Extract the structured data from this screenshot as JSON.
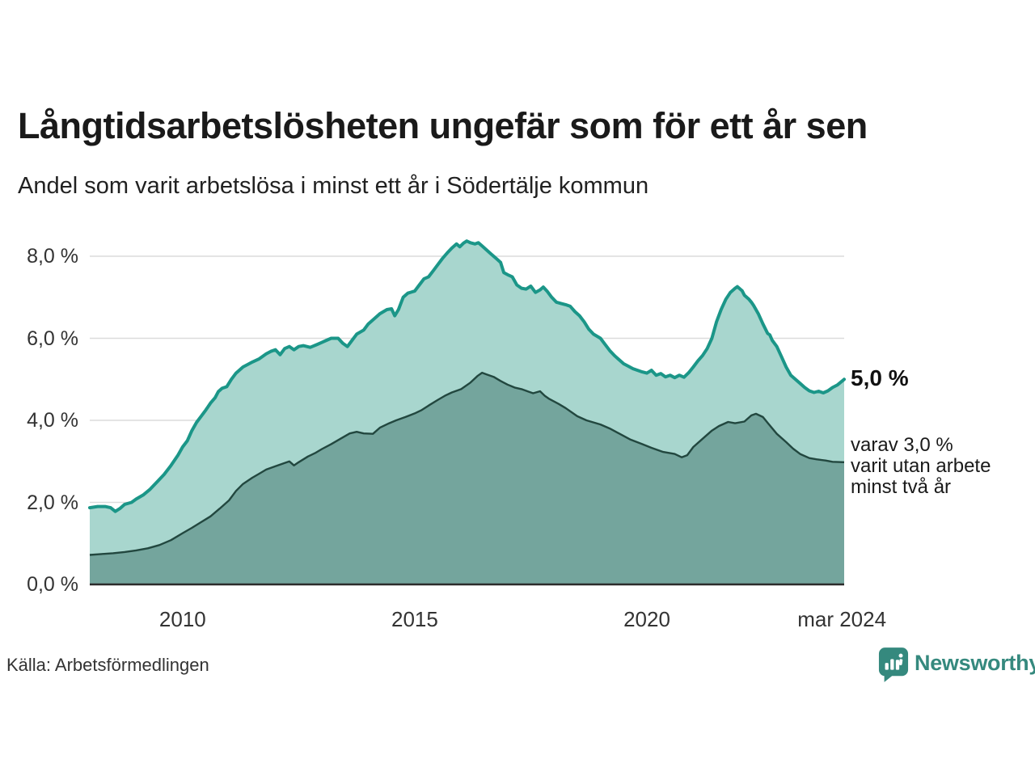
{
  "title": "Långtidsarbetslösheten ungefär som för ett år sen",
  "subtitle": "Andel som varit arbetslösa i minst ett år i Södertälje kommun",
  "source": "Källa: Arbetsförmedlingen",
  "branding": {
    "name": "Newsworthy",
    "color": "#35897e"
  },
  "annotations": {
    "latest_total": "5,0 %",
    "secondary": [
      "varav 3,0 %",
      "varit utan arbete",
      "minst två år"
    ]
  },
  "colors": {
    "total_line": "#1b9688",
    "total_fill": "#a8d6ce",
    "twoyear_line": "#22473f",
    "twoyear_fill": "#74a59d",
    "gridline": "#dcdcdc",
    "axis": "#2b2b2b"
  },
  "chart_data": {
    "type": "area",
    "title": "Långtidsarbetslösheten ungefär som för ett år sen",
    "subtitle": "Andel som varit arbetslösa i minst ett år i Södertälje kommun",
    "xlabel": "",
    "ylabel": "",
    "xlim": [
      2008.0,
      2024.25
    ],
    "ylim": [
      0,
      8.6
    ],
    "grid": true,
    "legend": "none",
    "yticks": [
      {
        "value": 8,
        "label": "8,0 %"
      },
      {
        "value": 6,
        "label": "6,0 %"
      },
      {
        "value": 4,
        "label": "4,0 %"
      },
      {
        "value": 2,
        "label": "2,0 %"
      },
      {
        "value": 0,
        "label": "0,0 %"
      }
    ],
    "xticks": [
      {
        "year": 2010,
        "label": "2010"
      },
      {
        "year": 2015,
        "label": "2015"
      },
      {
        "year": 2020,
        "label": "2020"
      },
      {
        "year": 2024.2,
        "label": "mar 2024"
      }
    ],
    "series": [
      {
        "name": "Arbetslösa minst ett år",
        "unit": "%",
        "latest_label": "5,0 %",
        "points": [
          [
            2008.0,
            1.87
          ],
          [
            2008.17,
            1.9
          ],
          [
            2008.33,
            1.9
          ],
          [
            2008.45,
            1.87
          ],
          [
            2008.55,
            1.78
          ],
          [
            2008.65,
            1.85
          ],
          [
            2008.75,
            1.95
          ],
          [
            2008.9,
            2.0
          ],
          [
            2009.0,
            2.08
          ],
          [
            2009.15,
            2.18
          ],
          [
            2009.3,
            2.32
          ],
          [
            2009.45,
            2.5
          ],
          [
            2009.6,
            2.68
          ],
          [
            2009.75,
            2.9
          ],
          [
            2009.9,
            3.15
          ],
          [
            2010.0,
            3.35
          ],
          [
            2010.1,
            3.5
          ],
          [
            2010.2,
            3.75
          ],
          [
            2010.3,
            3.95
          ],
          [
            2010.4,
            4.1
          ],
          [
            2010.5,
            4.25
          ],
          [
            2010.6,
            4.42
          ],
          [
            2010.7,
            4.55
          ],
          [
            2010.77,
            4.7
          ],
          [
            2010.85,
            4.78
          ],
          [
            2010.95,
            4.82
          ],
          [
            2011.05,
            5.0
          ],
          [
            2011.15,
            5.15
          ],
          [
            2011.3,
            5.3
          ],
          [
            2011.4,
            5.36
          ],
          [
            2011.5,
            5.42
          ],
          [
            2011.65,
            5.5
          ],
          [
            2011.8,
            5.62
          ],
          [
            2011.9,
            5.68
          ],
          [
            2012.0,
            5.72
          ],
          [
            2012.1,
            5.6
          ],
          [
            2012.2,
            5.75
          ],
          [
            2012.3,
            5.8
          ],
          [
            2012.4,
            5.72
          ],
          [
            2012.5,
            5.8
          ],
          [
            2012.6,
            5.82
          ],
          [
            2012.75,
            5.78
          ],
          [
            2012.9,
            5.85
          ],
          [
            2013.0,
            5.9
          ],
          [
            2013.1,
            5.95
          ],
          [
            2013.2,
            6.0
          ],
          [
            2013.35,
            6.0
          ],
          [
            2013.45,
            5.88
          ],
          [
            2013.55,
            5.8
          ],
          [
            2013.65,
            5.95
          ],
          [
            2013.75,
            6.1
          ],
          [
            2013.9,
            6.2
          ],
          [
            2014.0,
            6.35
          ],
          [
            2014.1,
            6.45
          ],
          [
            2014.25,
            6.6
          ],
          [
            2014.4,
            6.7
          ],
          [
            2014.5,
            6.72
          ],
          [
            2014.57,
            6.55
          ],
          [
            2014.65,
            6.7
          ],
          [
            2014.75,
            7.0
          ],
          [
            2014.85,
            7.1
          ],
          [
            2015.0,
            7.15
          ],
          [
            2015.1,
            7.3
          ],
          [
            2015.2,
            7.45
          ],
          [
            2015.3,
            7.5
          ],
          [
            2015.4,
            7.65
          ],
          [
            2015.5,
            7.8
          ],
          [
            2015.6,
            7.95
          ],
          [
            2015.7,
            8.08
          ],
          [
            2015.8,
            8.2
          ],
          [
            2015.9,
            8.3
          ],
          [
            2015.97,
            8.23
          ],
          [
            2016.05,
            8.32
          ],
          [
            2016.12,
            8.37
          ],
          [
            2016.2,
            8.33
          ],
          [
            2016.3,
            8.3
          ],
          [
            2016.37,
            8.33
          ],
          [
            2016.45,
            8.25
          ],
          [
            2016.55,
            8.15
          ],
          [
            2016.65,
            8.05
          ],
          [
            2016.75,
            7.95
          ],
          [
            2016.85,
            7.85
          ],
          [
            2016.92,
            7.6
          ],
          [
            2017.0,
            7.55
          ],
          [
            2017.1,
            7.5
          ],
          [
            2017.2,
            7.3
          ],
          [
            2017.3,
            7.22
          ],
          [
            2017.4,
            7.2
          ],
          [
            2017.5,
            7.27
          ],
          [
            2017.6,
            7.12
          ],
          [
            2017.7,
            7.18
          ],
          [
            2017.77,
            7.25
          ],
          [
            2017.85,
            7.15
          ],
          [
            2017.95,
            7.0
          ],
          [
            2018.05,
            6.88
          ],
          [
            2018.15,
            6.85
          ],
          [
            2018.25,
            6.82
          ],
          [
            2018.35,
            6.78
          ],
          [
            2018.45,
            6.65
          ],
          [
            2018.55,
            6.55
          ],
          [
            2018.65,
            6.4
          ],
          [
            2018.75,
            6.22
          ],
          [
            2018.85,
            6.1
          ],
          [
            2019.0,
            6.0
          ],
          [
            2019.1,
            5.85
          ],
          [
            2019.2,
            5.7
          ],
          [
            2019.3,
            5.58
          ],
          [
            2019.4,
            5.48
          ],
          [
            2019.5,
            5.38
          ],
          [
            2019.6,
            5.32
          ],
          [
            2019.7,
            5.26
          ],
          [
            2019.8,
            5.22
          ],
          [
            2019.9,
            5.18
          ],
          [
            2020.0,
            5.15
          ],
          [
            2020.1,
            5.22
          ],
          [
            2020.2,
            5.1
          ],
          [
            2020.3,
            5.14
          ],
          [
            2020.4,
            5.06
          ],
          [
            2020.5,
            5.1
          ],
          [
            2020.6,
            5.04
          ],
          [
            2020.7,
            5.1
          ],
          [
            2020.8,
            5.05
          ],
          [
            2020.9,
            5.16
          ],
          [
            2021.0,
            5.3
          ],
          [
            2021.1,
            5.45
          ],
          [
            2021.2,
            5.58
          ],
          [
            2021.3,
            5.75
          ],
          [
            2021.4,
            6.0
          ],
          [
            2021.5,
            6.4
          ],
          [
            2021.6,
            6.7
          ],
          [
            2021.7,
            6.95
          ],
          [
            2021.8,
            7.12
          ],
          [
            2021.9,
            7.22
          ],
          [
            2021.95,
            7.26
          ],
          [
            2022.05,
            7.16
          ],
          [
            2022.1,
            7.05
          ],
          [
            2022.2,
            6.95
          ],
          [
            2022.25,
            6.88
          ],
          [
            2022.3,
            6.8
          ],
          [
            2022.4,
            6.6
          ],
          [
            2022.5,
            6.35
          ],
          [
            2022.6,
            6.12
          ],
          [
            2022.65,
            6.08
          ],
          [
            2022.7,
            5.95
          ],
          [
            2022.8,
            5.8
          ],
          [
            2022.9,
            5.55
          ],
          [
            2023.0,
            5.3
          ],
          [
            2023.1,
            5.1
          ],
          [
            2023.2,
            5.0
          ],
          [
            2023.3,
            4.9
          ],
          [
            2023.4,
            4.8
          ],
          [
            2023.5,
            4.72
          ],
          [
            2023.6,
            4.68
          ],
          [
            2023.7,
            4.71
          ],
          [
            2023.8,
            4.67
          ],
          [
            2023.9,
            4.72
          ],
          [
            2024.0,
            4.8
          ],
          [
            2024.1,
            4.86
          ],
          [
            2024.25,
            5.0
          ]
        ]
      },
      {
        "name": "varav utan arbete minst två år",
        "unit": "%",
        "latest_label": "3,0 %",
        "points": [
          [
            2008.0,
            0.72
          ],
          [
            2008.25,
            0.74
          ],
          [
            2008.5,
            0.76
          ],
          [
            2008.75,
            0.79
          ],
          [
            2009.0,
            0.83
          ],
          [
            2009.25,
            0.88
          ],
          [
            2009.5,
            0.96
          ],
          [
            2009.75,
            1.08
          ],
          [
            2010.0,
            1.25
          ],
          [
            2010.2,
            1.38
          ],
          [
            2010.4,
            1.52
          ],
          [
            2010.6,
            1.66
          ],
          [
            2010.8,
            1.85
          ],
          [
            2011.0,
            2.05
          ],
          [
            2011.15,
            2.28
          ],
          [
            2011.3,
            2.45
          ],
          [
            2011.5,
            2.6
          ],
          [
            2011.65,
            2.7
          ],
          [
            2011.8,
            2.8
          ],
          [
            2012.0,
            2.88
          ],
          [
            2012.2,
            2.96
          ],
          [
            2012.3,
            3.0
          ],
          [
            2012.4,
            2.9
          ],
          [
            2012.5,
            2.98
          ],
          [
            2012.7,
            3.12
          ],
          [
            2012.85,
            3.2
          ],
          [
            2013.0,
            3.3
          ],
          [
            2013.2,
            3.42
          ],
          [
            2013.4,
            3.55
          ],
          [
            2013.6,
            3.68
          ],
          [
            2013.75,
            3.72
          ],
          [
            2013.9,
            3.68
          ],
          [
            2014.1,
            3.67
          ],
          [
            2014.25,
            3.82
          ],
          [
            2014.45,
            3.93
          ],
          [
            2014.6,
            4.0
          ],
          [
            2014.8,
            4.08
          ],
          [
            2015.0,
            4.17
          ],
          [
            2015.15,
            4.25
          ],
          [
            2015.3,
            4.36
          ],
          [
            2015.5,
            4.5
          ],
          [
            2015.65,
            4.6
          ],
          [
            2015.8,
            4.68
          ],
          [
            2016.0,
            4.76
          ],
          [
            2016.2,
            4.92
          ],
          [
            2016.35,
            5.08
          ],
          [
            2016.45,
            5.16
          ],
          [
            2016.55,
            5.12
          ],
          [
            2016.7,
            5.06
          ],
          [
            2016.85,
            4.96
          ],
          [
            2017.0,
            4.87
          ],
          [
            2017.15,
            4.8
          ],
          [
            2017.3,
            4.76
          ],
          [
            2017.45,
            4.7
          ],
          [
            2017.55,
            4.66
          ],
          [
            2017.7,
            4.71
          ],
          [
            2017.8,
            4.6
          ],
          [
            2017.9,
            4.52
          ],
          [
            2018.1,
            4.4
          ],
          [
            2018.25,
            4.3
          ],
          [
            2018.5,
            4.1
          ],
          [
            2018.7,
            4.0
          ],
          [
            2019.0,
            3.9
          ],
          [
            2019.2,
            3.8
          ],
          [
            2019.4,
            3.68
          ],
          [
            2019.65,
            3.53
          ],
          [
            2019.9,
            3.42
          ],
          [
            2020.1,
            3.33
          ],
          [
            2020.35,
            3.23
          ],
          [
            2020.6,
            3.18
          ],
          [
            2020.75,
            3.1
          ],
          [
            2020.87,
            3.15
          ],
          [
            2021.0,
            3.35
          ],
          [
            2021.2,
            3.55
          ],
          [
            2021.4,
            3.75
          ],
          [
            2021.55,
            3.86
          ],
          [
            2021.75,
            3.96
          ],
          [
            2021.9,
            3.93
          ],
          [
            2022.1,
            3.97
          ],
          [
            2022.25,
            4.12
          ],
          [
            2022.35,
            4.16
          ],
          [
            2022.5,
            4.08
          ],
          [
            2022.6,
            3.94
          ],
          [
            2022.8,
            3.67
          ],
          [
            2023.0,
            3.47
          ],
          [
            2023.15,
            3.31
          ],
          [
            2023.3,
            3.18
          ],
          [
            2023.5,
            3.08
          ],
          [
            2023.65,
            3.05
          ],
          [
            2023.85,
            3.02
          ],
          [
            2024.0,
            2.99
          ],
          [
            2024.25,
            2.98
          ]
        ]
      }
    ]
  }
}
